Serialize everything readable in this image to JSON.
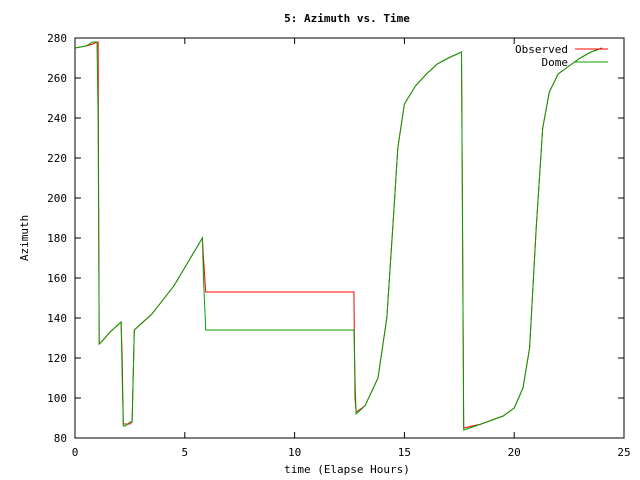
{
  "chart_data": {
    "type": "line",
    "title": "5: Azimuth vs. Time",
    "xlabel": "time (Elapse Hours)",
    "ylabel": "Azimuth",
    "xlim": [
      0,
      25
    ],
    "ylim": [
      80,
      280
    ],
    "xticks": [
      0,
      5,
      10,
      15,
      20,
      25
    ],
    "yticks": [
      80,
      100,
      120,
      140,
      160,
      180,
      200,
      220,
      240,
      260,
      280
    ],
    "grid": false,
    "legend_position": "top-right",
    "series": [
      {
        "name": "Observed",
        "color": "#ff0000",
        "x": [
          0.0,
          0.5,
          0.8,
          1.0,
          1.05,
          1.1,
          1.2,
          1.6,
          2.1,
          2.15,
          2.2,
          2.3,
          2.5,
          2.6,
          2.7,
          3.5,
          4.5,
          5.8,
          5.85,
          5.95,
          12.7,
          12.75,
          12.8,
          13.2,
          13.8,
          14.2,
          14.5,
          14.7,
          15.0,
          15.5,
          16.0,
          16.5,
          17.0,
          17.6,
          17.65,
          17.7,
          18.5,
          19.5,
          20.0,
          20.4,
          20.7,
          21.0,
          21.3,
          21.6,
          22.0,
          22.5,
          23.0,
          23.5,
          24.0
        ],
        "y": [
          275,
          276,
          277,
          278,
          278,
          127,
          128,
          133,
          138,
          120,
          87,
          87,
          87,
          88,
          134,
          142,
          156,
          180,
          170,
          153,
          153,
          100,
          93,
          96,
          110,
          140,
          190,
          225,
          247,
          256,
          262,
          267,
          270,
          273,
          180,
          85,
          87,
          91,
          95,
          105,
          125,
          185,
          235,
          253,
          262,
          266,
          270,
          273,
          275
        ]
      },
      {
        "name": "Dome",
        "color": "#00a000",
        "x": [
          0.0,
          0.5,
          0.8,
          1.0,
          1.05,
          1.1,
          1.2,
          1.6,
          2.1,
          2.15,
          2.2,
          2.3,
          2.5,
          2.6,
          2.7,
          3.5,
          4.5,
          5.8,
          5.85,
          5.95,
          12.7,
          12.75,
          12.8,
          13.2,
          13.8,
          14.2,
          14.5,
          14.7,
          15.0,
          15.5,
          16.0,
          16.5,
          17.0,
          17.6,
          17.65,
          17.7,
          18.5,
          19.5,
          20.0,
          20.4,
          20.7,
          21.0,
          21.3,
          21.6,
          22.0,
          22.5,
          23.0,
          23.5,
          24.0
        ],
        "y": [
          275,
          276,
          278,
          278,
          240,
          127,
          128,
          133,
          138,
          110,
          86,
          86,
          88,
          88,
          134,
          142,
          156,
          180,
          160,
          134,
          134,
          110,
          92,
          96,
          110,
          140,
          190,
          225,
          247,
          256,
          262,
          267,
          270,
          273,
          180,
          84,
          87,
          91,
          95,
          105,
          125,
          185,
          235,
          253,
          262,
          266,
          270,
          273,
          275
        ]
      }
    ]
  }
}
